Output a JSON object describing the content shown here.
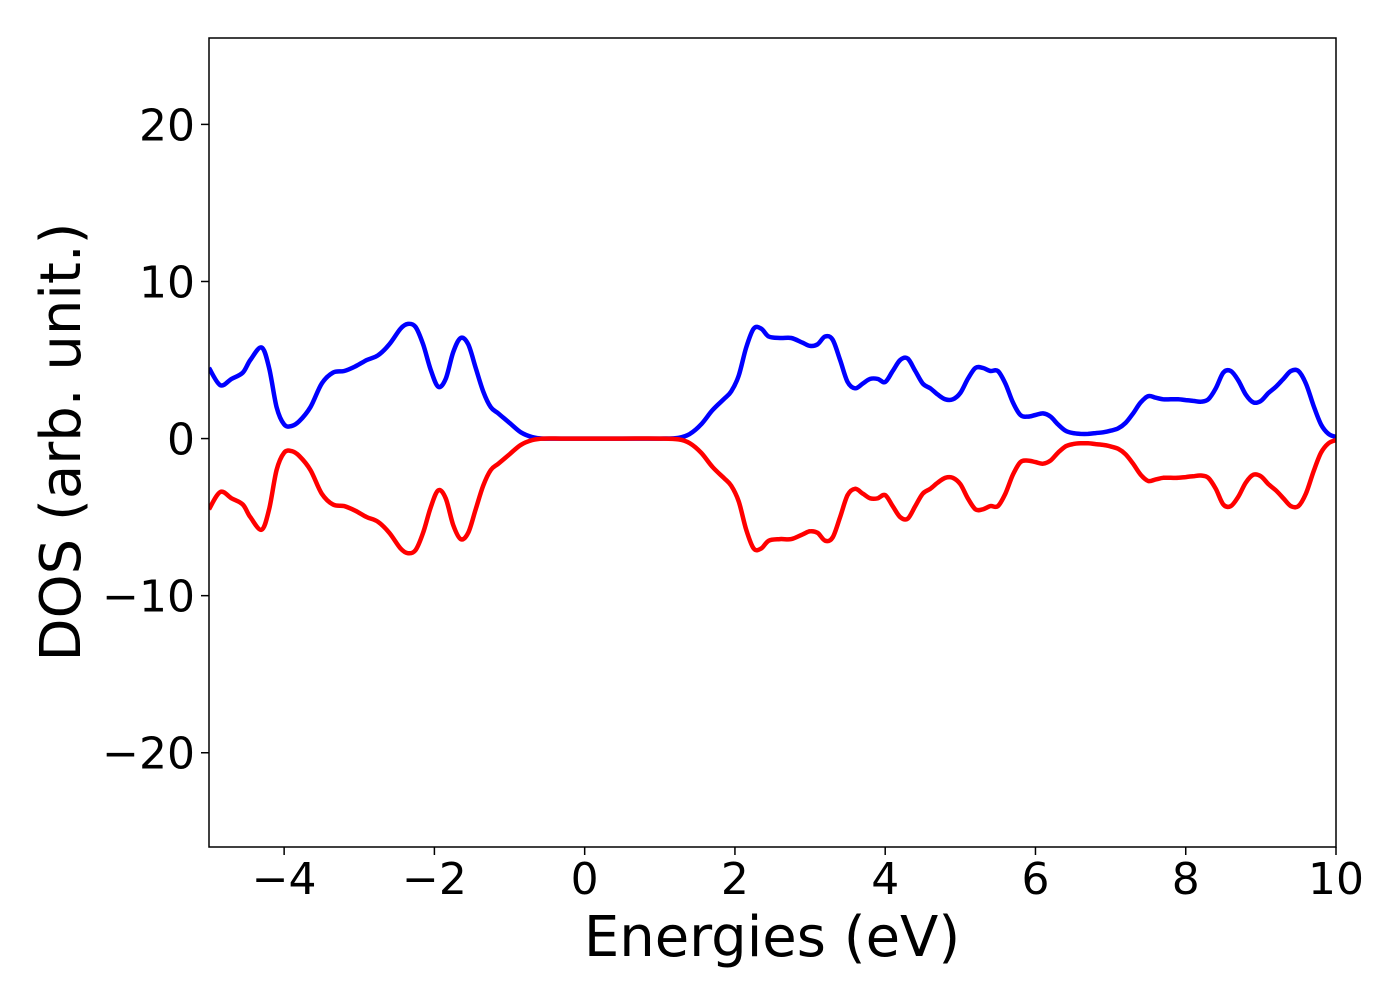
{
  "chart_data": {
    "type": "line",
    "title": "",
    "xlabel": "Energies (eV)",
    "ylabel": "DOS (arb. unit.)",
    "xlim": [
      -5,
      10
    ],
    "ylim": [
      -26,
      25.5
    ],
    "xticks": [
      -4,
      -2,
      0,
      2,
      4,
      6,
      8,
      10
    ],
    "yticks": [
      -20,
      -10,
      0,
      10,
      20
    ],
    "xtick_labels": [
      "−4",
      "−2",
      "0",
      "2",
      "4",
      "6",
      "8",
      "10"
    ],
    "ytick_labels": [
      "−20",
      "−10",
      "0",
      "10",
      "20"
    ],
    "grid": false,
    "series": [
      {
        "color": "#0000ff",
        "x": [
          -5.0,
          -4.85,
          -4.7,
          -4.55,
          -4.45,
          -4.3,
          -4.2,
          -4.1,
          -4.0,
          -3.9,
          -3.8,
          -3.65,
          -3.5,
          -3.35,
          -3.2,
          -3.05,
          -2.9,
          -2.75,
          -2.6,
          -2.45,
          -2.35,
          -2.25,
          -2.15,
          -2.05,
          -1.95,
          -1.85,
          -1.75,
          -1.65,
          -1.55,
          -1.45,
          -1.35,
          -1.25,
          -1.15,
          -1.0,
          -0.85,
          -0.7,
          -0.55,
          -0.3,
          0.0,
          0.5,
          1.0,
          1.25,
          1.4,
          1.55,
          1.7,
          1.85,
          1.95,
          2.05,
          2.15,
          2.25,
          2.35,
          2.45,
          2.6,
          2.75,
          2.9,
          3.0,
          3.1,
          3.2,
          3.3,
          3.4,
          3.5,
          3.6,
          3.7,
          3.8,
          3.9,
          4.0,
          4.1,
          4.2,
          4.3,
          4.4,
          4.5,
          4.6,
          4.7,
          4.8,
          4.9,
          5.0,
          5.1,
          5.2,
          5.3,
          5.4,
          5.5,
          5.6,
          5.7,
          5.8,
          5.9,
          6.0,
          6.1,
          6.2,
          6.3,
          6.4,
          6.5,
          6.6,
          6.7,
          6.8,
          6.9,
          7.0,
          7.1,
          7.2,
          7.3,
          7.4,
          7.5,
          7.6,
          7.7,
          7.8,
          7.9,
          8.0,
          8.1,
          8.2,
          8.3,
          8.4,
          8.5,
          8.6,
          8.7,
          8.8,
          8.9,
          9.0,
          9.1,
          9.2,
          9.3,
          9.4,
          9.5,
          9.6,
          9.7,
          9.8,
          9.9,
          10.0
        ],
        "y": [
          4.5,
          3.4,
          3.8,
          4.2,
          5.0,
          5.8,
          4.5,
          2.0,
          0.9,
          0.8,
          1.1,
          2.0,
          3.5,
          4.2,
          4.3,
          4.6,
          5.0,
          5.3,
          6.0,
          7.0,
          7.3,
          7.1,
          6.0,
          4.4,
          3.3,
          3.8,
          5.5,
          6.4,
          6.0,
          4.5,
          3.0,
          2.0,
          1.6,
          1.0,
          0.4,
          0.1,
          0.0,
          0.0,
          0.0,
          0.0,
          0.0,
          0.05,
          0.3,
          0.9,
          1.8,
          2.5,
          3.0,
          4.0,
          5.8,
          7.0,
          7.0,
          6.5,
          6.4,
          6.4,
          6.1,
          5.9,
          6.0,
          6.5,
          6.3,
          5.0,
          3.6,
          3.2,
          3.5,
          3.8,
          3.8,
          3.6,
          4.3,
          5.0,
          5.1,
          4.3,
          3.5,
          3.2,
          2.8,
          2.5,
          2.5,
          2.9,
          3.8,
          4.5,
          4.5,
          4.3,
          4.3,
          3.5,
          2.3,
          1.5,
          1.4,
          1.5,
          1.6,
          1.4,
          0.9,
          0.5,
          0.35,
          0.3,
          0.3,
          0.35,
          0.4,
          0.5,
          0.65,
          1.0,
          1.6,
          2.3,
          2.7,
          2.6,
          2.5,
          2.5,
          2.5,
          2.45,
          2.4,
          2.35,
          2.5,
          3.2,
          4.2,
          4.3,
          3.7,
          2.8,
          2.3,
          2.4,
          2.9,
          3.3,
          3.8,
          4.3,
          4.3,
          3.5,
          2.1,
          0.9,
          0.3,
          0.1
        ]
      },
      {
        "color": "#ff0000",
        "x": [
          -5.0,
          -4.85,
          -4.7,
          -4.55,
          -4.45,
          -4.3,
          -4.2,
          -4.1,
          -4.0,
          -3.9,
          -3.8,
          -3.65,
          -3.5,
          -3.35,
          -3.2,
          -3.05,
          -2.9,
          -2.75,
          -2.6,
          -2.45,
          -2.35,
          -2.25,
          -2.15,
          -2.05,
          -1.95,
          -1.85,
          -1.75,
          -1.65,
          -1.55,
          -1.45,
          -1.35,
          -1.25,
          -1.15,
          -1.0,
          -0.85,
          -0.7,
          -0.55,
          -0.3,
          0.0,
          0.5,
          1.0,
          1.25,
          1.4,
          1.55,
          1.7,
          1.85,
          1.95,
          2.05,
          2.15,
          2.25,
          2.35,
          2.45,
          2.6,
          2.75,
          2.9,
          3.0,
          3.1,
          3.2,
          3.3,
          3.4,
          3.5,
          3.6,
          3.7,
          3.8,
          3.9,
          4.0,
          4.1,
          4.2,
          4.3,
          4.4,
          4.5,
          4.6,
          4.7,
          4.8,
          4.9,
          5.0,
          5.1,
          5.2,
          5.3,
          5.4,
          5.5,
          5.6,
          5.7,
          5.8,
          5.9,
          6.0,
          6.1,
          6.2,
          6.3,
          6.4,
          6.5,
          6.6,
          6.7,
          6.8,
          6.9,
          7.0,
          7.1,
          7.2,
          7.3,
          7.4,
          7.5,
          7.6,
          7.7,
          7.8,
          7.9,
          8.0,
          8.1,
          8.2,
          8.3,
          8.4,
          8.5,
          8.6,
          8.7,
          8.8,
          8.9,
          9.0,
          9.1,
          9.2,
          9.3,
          9.4,
          9.5,
          9.6,
          9.7,
          9.8,
          9.9,
          10.0
        ],
        "y": [
          -4.5,
          -3.4,
          -3.8,
          -4.2,
          -5.0,
          -5.8,
          -4.5,
          -2.0,
          -0.9,
          -0.8,
          -1.1,
          -2.0,
          -3.5,
          -4.2,
          -4.3,
          -4.6,
          -5.0,
          -5.3,
          -6.0,
          -7.0,
          -7.3,
          -7.1,
          -6.0,
          -4.4,
          -3.3,
          -3.8,
          -5.5,
          -6.4,
          -6.0,
          -4.5,
          -3.0,
          -2.0,
          -1.6,
          -1.0,
          -0.4,
          -0.1,
          0.0,
          0.0,
          0.0,
          0.0,
          0.0,
          -0.05,
          -0.3,
          -0.9,
          -1.8,
          -2.5,
          -3.0,
          -4.0,
          -5.8,
          -7.0,
          -7.0,
          -6.5,
          -6.4,
          -6.4,
          -6.1,
          -5.9,
          -6.0,
          -6.5,
          -6.3,
          -5.0,
          -3.6,
          -3.2,
          -3.5,
          -3.8,
          -3.8,
          -3.6,
          -4.3,
          -5.0,
          -5.1,
          -4.3,
          -3.5,
          -3.2,
          -2.8,
          -2.5,
          -2.5,
          -2.9,
          -3.8,
          -4.5,
          -4.5,
          -4.3,
          -4.3,
          -3.5,
          -2.3,
          -1.5,
          -1.4,
          -1.5,
          -1.6,
          -1.4,
          -0.9,
          -0.5,
          -0.35,
          -0.3,
          -0.3,
          -0.35,
          -0.4,
          -0.5,
          -0.65,
          -1.0,
          -1.6,
          -2.3,
          -2.7,
          -2.6,
          -2.5,
          -2.5,
          -2.5,
          -2.45,
          -2.4,
          -2.35,
          -2.5,
          -3.2,
          -4.2,
          -4.3,
          -3.7,
          -2.8,
          -2.3,
          -2.4,
          -2.9,
          -3.3,
          -3.8,
          -4.3,
          -4.3,
          -3.5,
          -2.1,
          -0.9,
          -0.3,
          -0.1
        ]
      }
    ]
  }
}
